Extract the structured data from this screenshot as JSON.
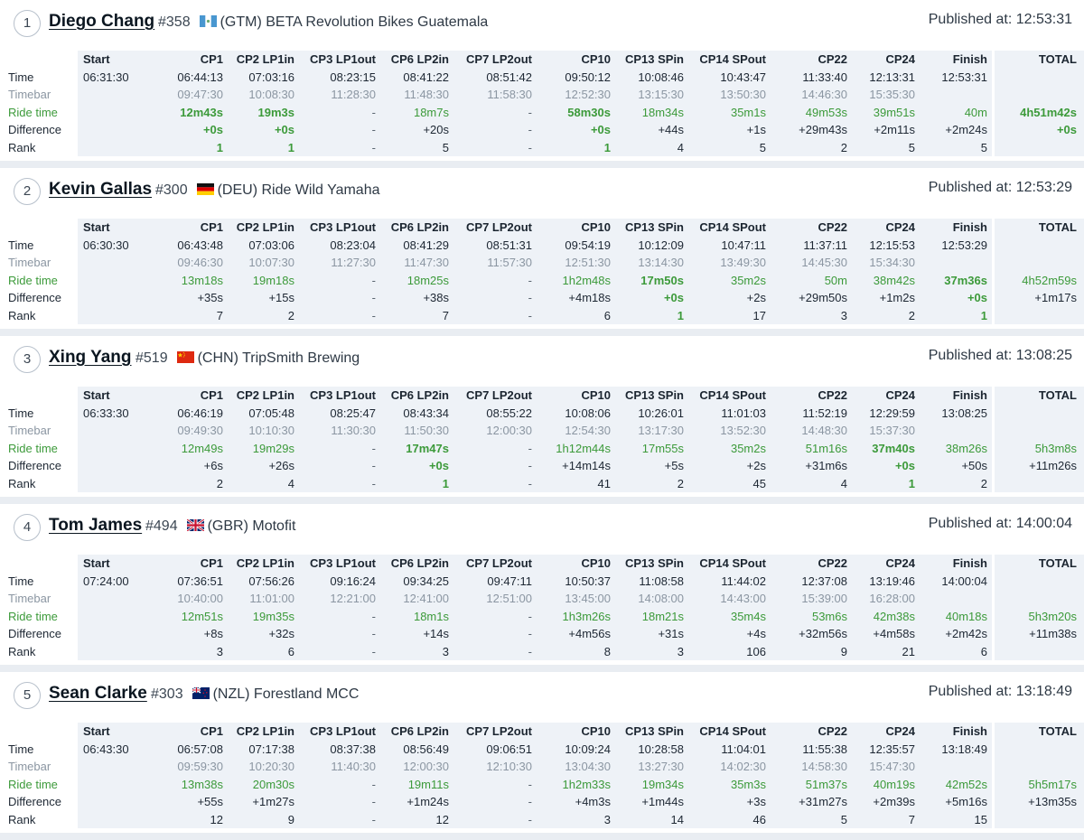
{
  "row_labels": [
    "Time",
    "Timebar",
    "Ride time",
    "Difference",
    "Rank"
  ],
  "columns": [
    "Start",
    "CP1",
    "CP2 LP1in",
    "CP3 LP1out",
    "CP6 LP2in",
    "CP7 LP2out",
    "CP10",
    "CP13 SPin",
    "CP14 SPout",
    "CP22",
    "CP24",
    "Finish",
    "TOTAL"
  ],
  "published_label": "Published at:",
  "colors": {
    "accent_green": "#3c9a3a",
    "muted_gray": "#8b96a2",
    "background": "#e9edf2"
  },
  "riders": [
    {
      "position": "1",
      "name": "Diego Chang",
      "bib": "#358",
      "flag": "flag-gtm-icon",
      "team": "(GTM) BETA Revolution Bikes Guatemala",
      "published": "12:53:31",
      "time": [
        "06:31:30",
        "06:44:13",
        "07:03:16",
        "08:23:15",
        "08:41:22",
        "08:51:42",
        "09:50:12",
        "10:08:46",
        "10:43:47",
        "11:33:40",
        "12:13:31",
        "12:53:31",
        ""
      ],
      "timebar": [
        "",
        "09:47:30",
        "10:08:30",
        "11:28:30",
        "11:48:30",
        "11:58:30",
        "12:52:30",
        "13:15:30",
        "13:50:30",
        "14:46:30",
        "15:35:30",
        "",
        ""
      ],
      "ride": [
        "",
        "12m43s",
        "19m3s",
        "-",
        "18m7s",
        "-",
        "58m30s",
        "18m34s",
        "35m1s",
        "49m53s",
        "39m51s",
        "40m",
        "4h51m42s"
      ],
      "diff": [
        "",
        "+0s",
        "+0s",
        "-",
        "+20s",
        "-",
        "+0s",
        "+44s",
        "+1s",
        "+29m43s",
        "+2m11s",
        "+2m24s",
        "+0s"
      ],
      "rank": [
        "",
        "1",
        "1",
        "-",
        "5",
        "-",
        "1",
        "4",
        "5",
        "2",
        "5",
        "5",
        ""
      ]
    },
    {
      "position": "2",
      "name": "Kevin Gallas",
      "bib": "#300",
      "flag": "flag-deu-icon",
      "team": "(DEU) Ride Wild Yamaha",
      "published": "12:53:29",
      "time": [
        "06:30:30",
        "06:43:48",
        "07:03:06",
        "08:23:04",
        "08:41:29",
        "08:51:31",
        "09:54:19",
        "10:12:09",
        "10:47:11",
        "11:37:11",
        "12:15:53",
        "12:53:29",
        ""
      ],
      "timebar": [
        "",
        "09:46:30",
        "10:07:30",
        "11:27:30",
        "11:47:30",
        "11:57:30",
        "12:51:30",
        "13:14:30",
        "13:49:30",
        "14:45:30",
        "15:34:30",
        "",
        ""
      ],
      "ride": [
        "",
        "13m18s",
        "19m18s",
        "-",
        "18m25s",
        "-",
        "1h2m48s",
        "17m50s",
        "35m2s",
        "50m",
        "38m42s",
        "37m36s",
        "4h52m59s"
      ],
      "diff": [
        "",
        "+35s",
        "+15s",
        "-",
        "+38s",
        "-",
        "+4m18s",
        "+0s",
        "+2s",
        "+29m50s",
        "+1m2s",
        "+0s",
        "+1m17s"
      ],
      "rank": [
        "",
        "7",
        "2",
        "-",
        "7",
        "-",
        "6",
        "1",
        "17",
        "3",
        "2",
        "1",
        ""
      ]
    },
    {
      "position": "3",
      "name": "Xing Yang",
      "bib": "#519",
      "flag": "flag-chn-icon",
      "team": "(CHN) TripSmith Brewing",
      "published": "13:08:25",
      "time": [
        "06:33:30",
        "06:46:19",
        "07:05:48",
        "08:25:47",
        "08:43:34",
        "08:55:22",
        "10:08:06",
        "10:26:01",
        "11:01:03",
        "11:52:19",
        "12:29:59",
        "13:08:25",
        ""
      ],
      "timebar": [
        "",
        "09:49:30",
        "10:10:30",
        "11:30:30",
        "11:50:30",
        "12:00:30",
        "12:54:30",
        "13:17:30",
        "13:52:30",
        "14:48:30",
        "15:37:30",
        "",
        ""
      ],
      "ride": [
        "",
        "12m49s",
        "19m29s",
        "-",
        "17m47s",
        "-",
        "1h12m44s",
        "17m55s",
        "35m2s",
        "51m16s",
        "37m40s",
        "38m26s",
        "5h3m8s"
      ],
      "diff": [
        "",
        "+6s",
        "+26s",
        "-",
        "+0s",
        "-",
        "+14m14s",
        "+5s",
        "+2s",
        "+31m6s",
        "+0s",
        "+50s",
        "+11m26s"
      ],
      "rank": [
        "",
        "2",
        "4",
        "-",
        "1",
        "-",
        "41",
        "2",
        "45",
        "4",
        "1",
        "2",
        ""
      ]
    },
    {
      "position": "4",
      "name": "Tom James",
      "bib": "#494",
      "flag": "flag-gbr-icon",
      "team": "(GBR) Motofit",
      "published": "14:00:04",
      "time": [
        "07:24:00",
        "07:36:51",
        "07:56:26",
        "09:16:24",
        "09:34:25",
        "09:47:11",
        "10:50:37",
        "11:08:58",
        "11:44:02",
        "12:37:08",
        "13:19:46",
        "14:00:04",
        ""
      ],
      "timebar": [
        "",
        "10:40:00",
        "11:01:00",
        "12:21:00",
        "12:41:00",
        "12:51:00",
        "13:45:00",
        "14:08:00",
        "14:43:00",
        "15:39:00",
        "16:28:00",
        "",
        ""
      ],
      "ride": [
        "",
        "12m51s",
        "19m35s",
        "-",
        "18m1s",
        "-",
        "1h3m26s",
        "18m21s",
        "35m4s",
        "53m6s",
        "42m38s",
        "40m18s",
        "5h3m20s"
      ],
      "diff": [
        "",
        "+8s",
        "+32s",
        "-",
        "+14s",
        "-",
        "+4m56s",
        "+31s",
        "+4s",
        "+32m56s",
        "+4m58s",
        "+2m42s",
        "+11m38s"
      ],
      "rank": [
        "",
        "3",
        "6",
        "-",
        "3",
        "-",
        "8",
        "3",
        "106",
        "9",
        "21",
        "6",
        ""
      ]
    },
    {
      "position": "5",
      "name": "Sean Clarke",
      "bib": "#303",
      "flag": "flag-nzl-icon",
      "team": "(NZL) Forestland MCC",
      "published": "13:18:49",
      "time": [
        "06:43:30",
        "06:57:08",
        "07:17:38",
        "08:37:38",
        "08:56:49",
        "09:06:51",
        "10:09:24",
        "10:28:58",
        "11:04:01",
        "11:55:38",
        "12:35:57",
        "13:18:49",
        ""
      ],
      "timebar": [
        "",
        "09:59:30",
        "10:20:30",
        "11:40:30",
        "12:00:30",
        "12:10:30",
        "13:04:30",
        "13:27:30",
        "14:02:30",
        "14:58:30",
        "15:47:30",
        "",
        ""
      ],
      "ride": [
        "",
        "13m38s",
        "20m30s",
        "-",
        "19m11s",
        "-",
        "1h2m33s",
        "19m34s",
        "35m3s",
        "51m37s",
        "40m19s",
        "42m52s",
        "5h5m17s"
      ],
      "diff": [
        "",
        "+55s",
        "+1m27s",
        "-",
        "+1m24s",
        "-",
        "+4m3s",
        "+1m44s",
        "+3s",
        "+31m27s",
        "+2m39s",
        "+5m16s",
        "+13m35s"
      ],
      "rank": [
        "",
        "12",
        "9",
        "-",
        "12",
        "-",
        "3",
        "14",
        "46",
        "5",
        "7",
        "15",
        ""
      ]
    }
  ]
}
